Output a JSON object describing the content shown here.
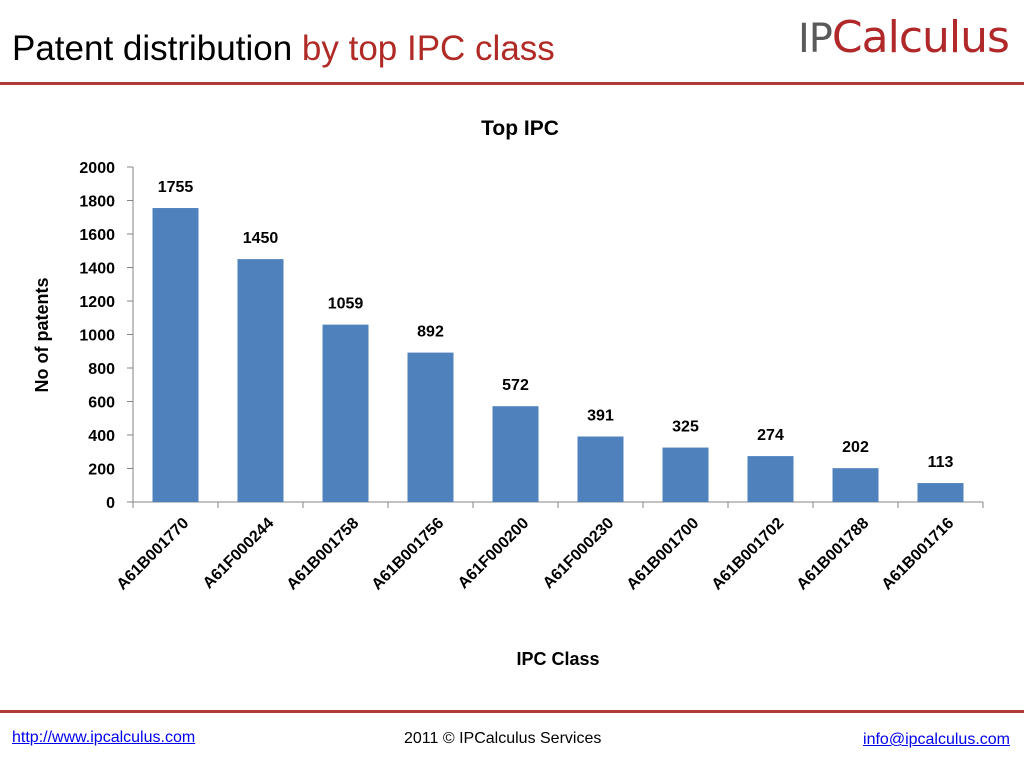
{
  "header": {
    "title_main": "Patent distribution",
    "title_accent": "by top IPC class",
    "logo_prefix": "IP",
    "logo_rest": "Calculus"
  },
  "chart_data": {
    "type": "bar",
    "title": "Top IPC",
    "xlabel": "IPC Class",
    "ylabel": "No of patents",
    "categories": [
      "A61B001770",
      "A61F000244",
      "A61B001758",
      "A61B001756",
      "A61F000200",
      "A61F000230",
      "A61B001700",
      "A61B001702",
      "A61B001788",
      "A61B001716"
    ],
    "values": [
      1755,
      1450,
      1059,
      892,
      572,
      391,
      325,
      274,
      202,
      113
    ],
    "ylim": [
      0,
      2000
    ],
    "yticks": [
      0,
      200,
      400,
      600,
      800,
      1000,
      1200,
      1400,
      1600,
      1800,
      2000
    ],
    "data_labels": true,
    "grid": false,
    "legend": false,
    "bar_color": "#4f81bd"
  },
  "footer": {
    "website": "http://www.ipcalculus.com",
    "copyright": "2011 © IPCalculus Services",
    "email": "info@ipcalculus.com"
  },
  "colors": {
    "accent": "#b02a26",
    "rule": "#b03a35",
    "link": "#0000ee"
  }
}
